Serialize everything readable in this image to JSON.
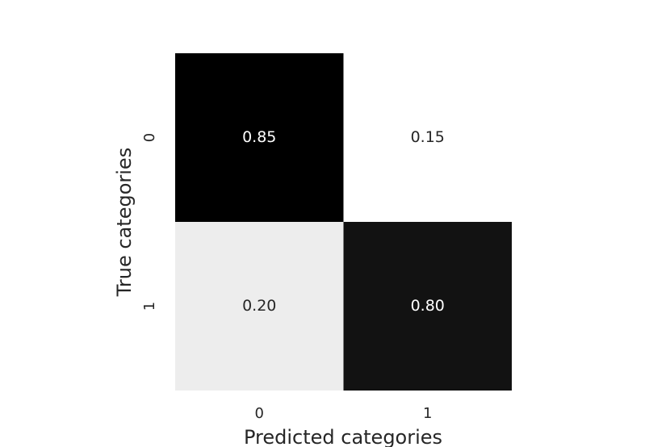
{
  "chart_data": {
    "type": "heatmap",
    "x_label": "Predicted categories",
    "y_label": "True categories",
    "x_categories": [
      "0",
      "1"
    ],
    "y_categories": [
      "0",
      "1"
    ],
    "values": [
      [
        0.85,
        0.15
      ],
      [
        0.2,
        0.8
      ]
    ],
    "value_labels": [
      [
        "0.85",
        "0.15"
      ],
      [
        "0.20",
        "0.80"
      ]
    ],
    "colormap": [
      "#ffffff",
      "#000000"
    ]
  }
}
